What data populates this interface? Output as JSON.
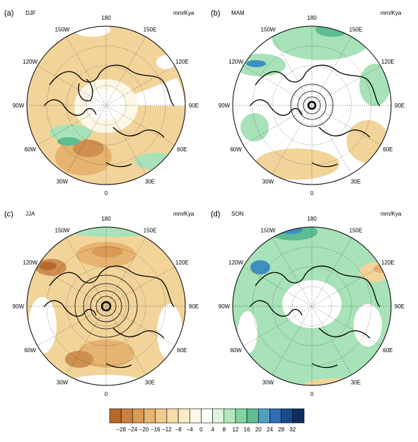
{
  "units_label": "mm/Kya",
  "panels": [
    {
      "label": "(a)",
      "season": "DJF",
      "center_marker": false
    },
    {
      "label": "(b)",
      "season": "MAM",
      "center_marker": true
    },
    {
      "label": "(c)",
      "season": "JJA",
      "center_marker": true
    },
    {
      "label": "(d)",
      "season": "SON",
      "center_marker": false
    }
  ],
  "longitude_labels": [
    "180",
    "150E",
    "120E",
    "90E",
    "60E",
    "30E",
    "0",
    "30W",
    "60W",
    "90W",
    "120W",
    "150W"
  ],
  "colorbar": {
    "ticks": [
      "−28",
      "−24",
      "−20",
      "−16",
      "−12",
      "−8",
      "−4",
      "0",
      "4",
      "8",
      "12",
      "16",
      "20",
      "24",
      "28",
      "32"
    ],
    "colors": [
      "#b56a2a",
      "#c98040",
      "#d99a55",
      "#e6b370",
      "#f0ca8c",
      "#f6dca8",
      "#faebc5",
      "#fdf7e6",
      "#ffffff",
      "#ddf5dd",
      "#b4e8bf",
      "#84d3a2",
      "#5dbd92",
      "#4f9fbf",
      "#2f6fb3",
      "#1a4a8c",
      "#0e2e5c"
    ]
  },
  "fill_colors": {
    "dry": "#f2d49a",
    "dry_strong": "#cf8f50",
    "wet": "#a8e2b8",
    "wet_strong": "#3f8fc0",
    "neutral": "#ffffff"
  }
}
